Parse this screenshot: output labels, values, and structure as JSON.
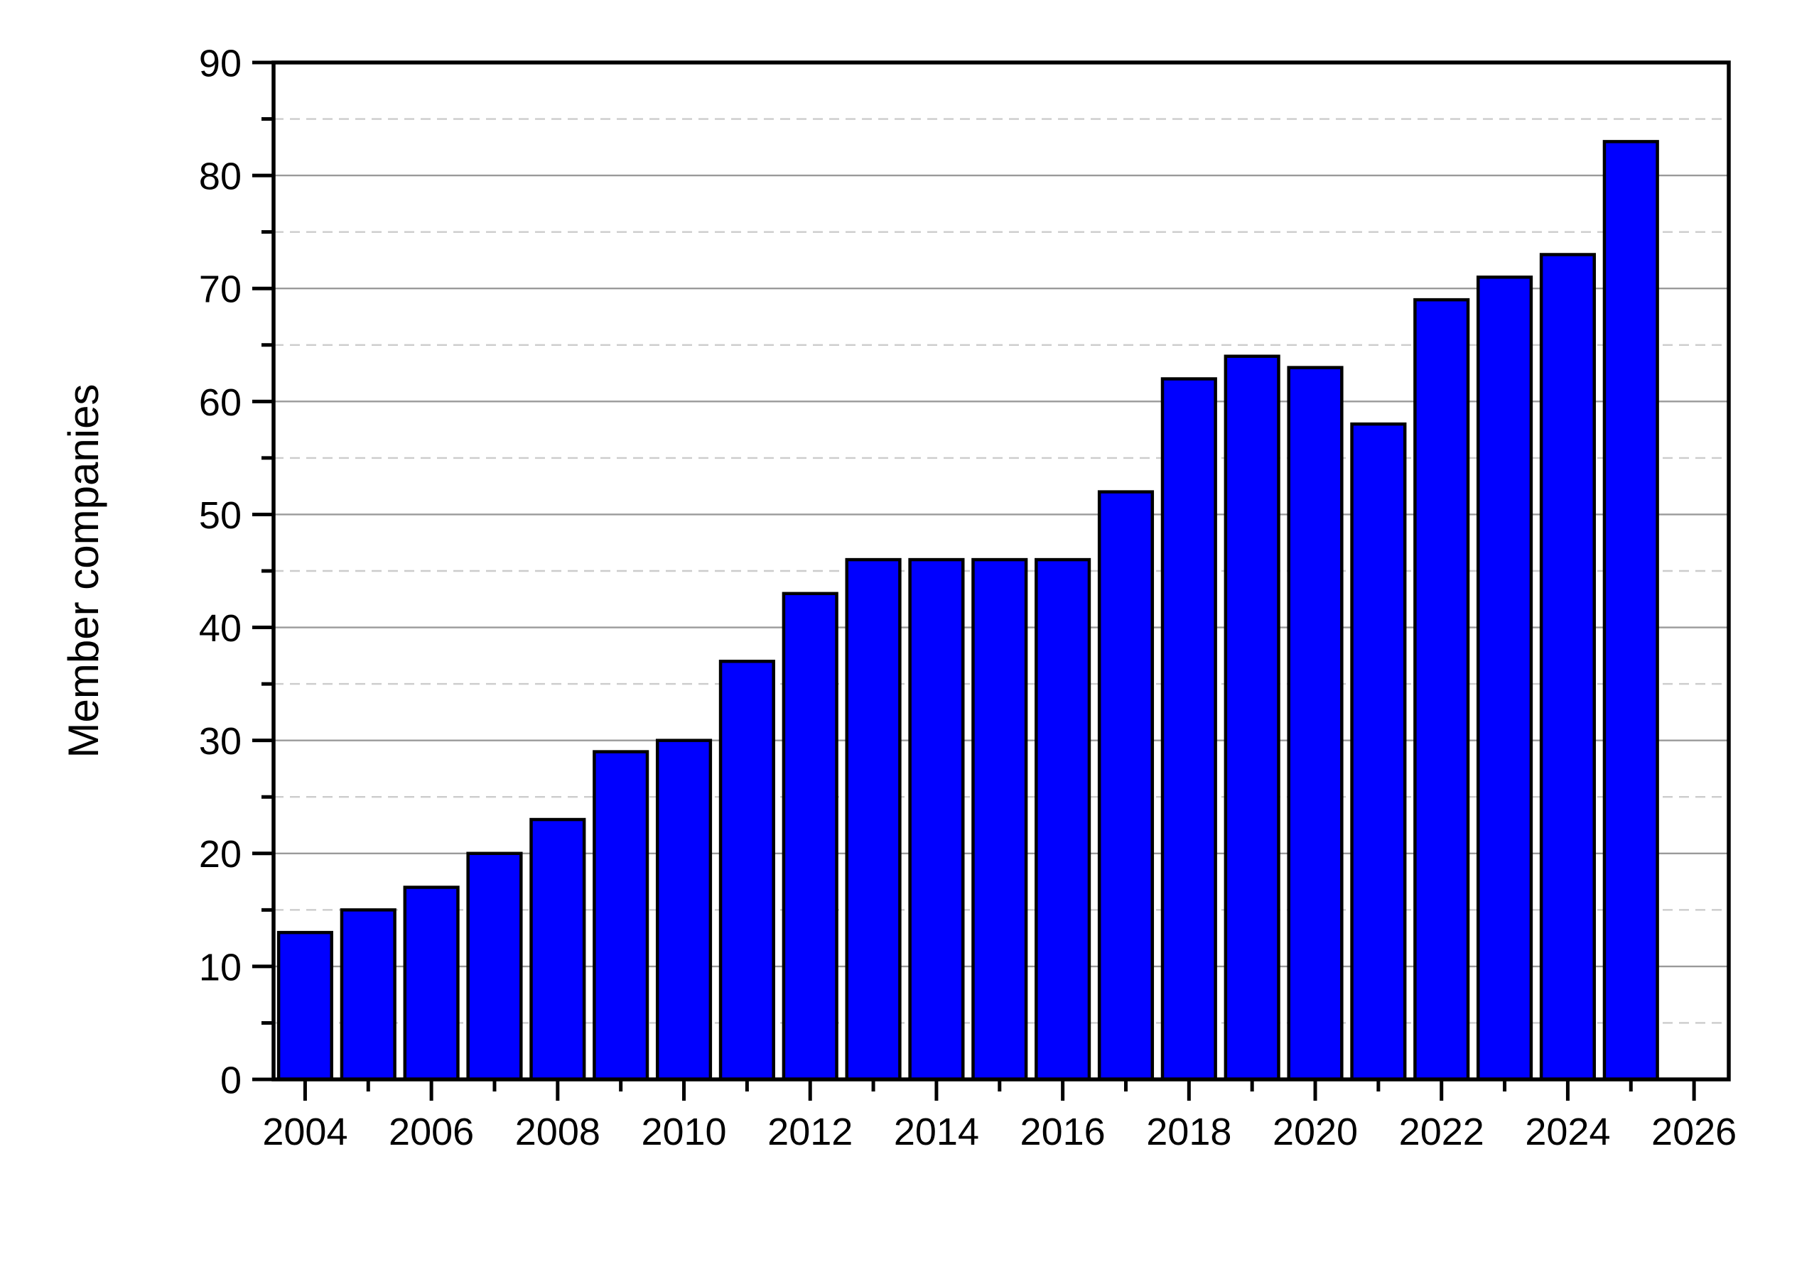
{
  "chart_data": {
    "type": "bar",
    "title": "",
    "xlabel": "",
    "ylabel": "Member companies",
    "categories": [
      2004,
      2005,
      2006,
      2007,
      2008,
      2009,
      2010,
      2011,
      2012,
      2013,
      2014,
      2015,
      2016,
      2017,
      2018,
      2019,
      2020,
      2021,
      2022,
      2023,
      2024,
      2025
    ],
    "values": [
      13,
      15,
      17,
      20,
      23,
      29,
      30,
      37,
      43,
      46,
      46,
      46,
      46,
      52,
      62,
      64,
      63,
      58,
      69,
      71,
      73,
      83
    ],
    "ylim": [
      0,
      90
    ],
    "xlim": [
      2003.5,
      2026.55
    ],
    "y_major_ticks": [
      0,
      10,
      20,
      30,
      40,
      50,
      60,
      70,
      80,
      90
    ],
    "y_minor_ticks": [
      5,
      15,
      25,
      35,
      45,
      55,
      65,
      75,
      85
    ],
    "x_major_ticks": [
      2004,
      2006,
      2008,
      2010,
      2012,
      2014,
      2016,
      2018,
      2020,
      2022,
      2024,
      2026
    ],
    "x_minor_ticks": [
      2005,
      2007,
      2009,
      2011,
      2013,
      2015,
      2017,
      2019,
      2021,
      2023,
      2025
    ],
    "grid": "horizontal only: solid lines at major ticks, dashed lines at minor ticks",
    "legend": null,
    "bar_width_fraction": 0.84,
    "colors": {
      "bar_fill": "#0000ff",
      "bar_edge": "#000000",
      "grid_major": "#9a9a9a",
      "grid_minor": "#cccccc",
      "axis": "#000000",
      "text": "#000000",
      "background": "#ffffff"
    }
  }
}
